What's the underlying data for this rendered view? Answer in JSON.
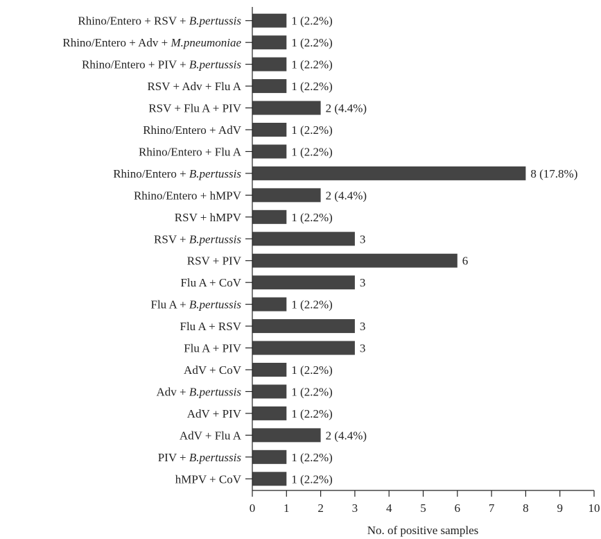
{
  "chart_data": {
    "type": "bar",
    "orientation": "horizontal",
    "xlabel": "No. of positive samples",
    "xlim": [
      0,
      10
    ],
    "xticks": [
      0,
      1,
      2,
      3,
      4,
      5,
      6,
      7,
      8,
      9,
      10
    ],
    "grid": false,
    "bar_color": "#444444",
    "categories": [
      {
        "parts": [
          {
            "t": "Rhino/Entero + RSV + "
          },
          {
            "t": "B.pertussis",
            "i": true
          }
        ]
      },
      {
        "parts": [
          {
            "t": "Rhino/Entero + Adv + "
          },
          {
            "t": "M.pneumoniae",
            "i": true
          }
        ]
      },
      {
        "parts": [
          {
            "t": "Rhino/Entero + PIV + "
          },
          {
            "t": "B.pertussis",
            "i": true
          }
        ]
      },
      {
        "parts": [
          {
            "t": "RSV + Adv + Flu A"
          }
        ]
      },
      {
        "parts": [
          {
            "t": "RSV + Flu A + PIV"
          }
        ]
      },
      {
        "parts": [
          {
            "t": "Rhino/Entero + AdV"
          }
        ]
      },
      {
        "parts": [
          {
            "t": "Rhino/Entero + Flu A"
          }
        ]
      },
      {
        "parts": [
          {
            "t": "Rhino/Entero + "
          },
          {
            "t": "B.pertussis",
            "i": true
          }
        ]
      },
      {
        "parts": [
          {
            "t": "Rhino/Entero + hMPV"
          }
        ]
      },
      {
        "parts": [
          {
            "t": "RSV + hMPV"
          }
        ]
      },
      {
        "parts": [
          {
            "t": "RSV + "
          },
          {
            "t": "B.pertussis",
            "i": true
          }
        ]
      },
      {
        "parts": [
          {
            "t": "RSV + PIV"
          }
        ]
      },
      {
        "parts": [
          {
            "t": "Flu A + CoV"
          }
        ]
      },
      {
        "parts": [
          {
            "t": "Flu A + "
          },
          {
            "t": "B.pertussis",
            "i": true
          }
        ]
      },
      {
        "parts": [
          {
            "t": "Flu A + RSV"
          }
        ]
      },
      {
        "parts": [
          {
            "t": "Flu A + PIV"
          }
        ]
      },
      {
        "parts": [
          {
            "t": "AdV + CoV"
          }
        ]
      },
      {
        "parts": [
          {
            "t": "Adv + "
          },
          {
            "t": "B.pertussis",
            "i": true
          }
        ]
      },
      {
        "parts": [
          {
            "t": "AdV + PIV"
          }
        ]
      },
      {
        "parts": [
          {
            "t": "AdV + Flu A"
          }
        ]
      },
      {
        "parts": [
          {
            "t": "PIV + "
          },
          {
            "t": "B.pertussis",
            "i": true
          }
        ]
      },
      {
        "parts": [
          {
            "t": "hMPV + CoV"
          }
        ]
      }
    ],
    "values": [
      1,
      1,
      1,
      1,
      2,
      1,
      1,
      8,
      2,
      1,
      3,
      6,
      3,
      1,
      3,
      3,
      1,
      1,
      1,
      2,
      1,
      1
    ],
    "data_labels": [
      "1 (2.2%)",
      "1 (2.2%)",
      "1 (2.2%)",
      "1 (2.2%)",
      "2 (4.4%)",
      "1 (2.2%)",
      "1 (2.2%)",
      "8 (17.8%)",
      "2 (4.4%)",
      "1 (2.2%)",
      "3",
      "6",
      "3",
      "1 (2.2%)",
      "3",
      "3",
      "1 (2.2%)",
      "1 (2.2%)",
      "1 (2.2%)",
      "2 (4.4%)",
      "1 (2.2%)",
      "1 (2.2%)"
    ]
  }
}
